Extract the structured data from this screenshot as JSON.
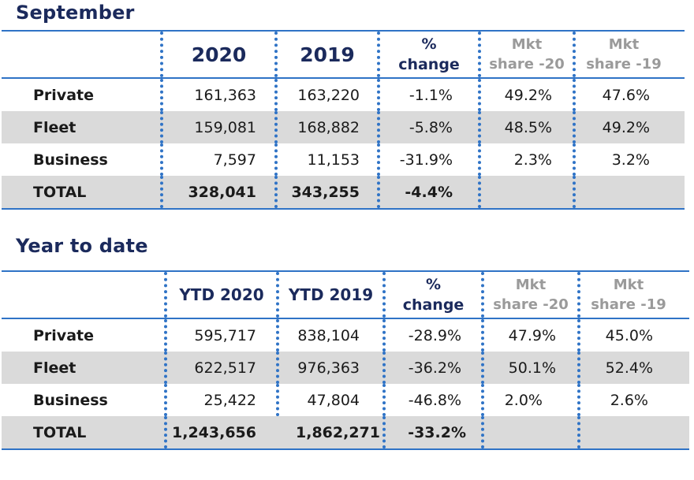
{
  "sections": [
    {
      "title": "September",
      "headers": {
        "col1": "2020",
        "col2": "2019",
        "pct": [
          "%",
          "change"
        ],
        "mkt20": [
          "Mkt",
          "share -20"
        ],
        "mkt19": [
          "Mkt",
          "share -19"
        ]
      },
      "rows": [
        {
          "label": "Private",
          "v1": "161,363",
          "v2": "163,220",
          "pct": "-1.1%",
          "m20": "49.2%",
          "m19": "47.6%"
        },
        {
          "label": "Fleet",
          "v1": "159,081",
          "v2": "168,882",
          "pct": "-5.8%",
          "m20": "48.5%",
          "m19": "49.2%"
        },
        {
          "label": "Business",
          "v1": "7,597",
          "v2": "11,153",
          "pct": "-31.9%",
          "m20": "2.3%",
          "m19": "3.2%"
        }
      ],
      "total": {
        "label": "TOTAL",
        "v1": "328,041",
        "v2": "343,255",
        "pct": "-4.4%"
      }
    },
    {
      "title": "Year to date",
      "headers": {
        "col1": "YTD 2020",
        "col2": "YTD 2019",
        "pct": [
          "%",
          "change"
        ],
        "mkt20": [
          "Mkt",
          "share -20"
        ],
        "mkt19": [
          "Mkt",
          "share -19"
        ]
      },
      "rows": [
        {
          "label": "Private",
          "v1": "595,717",
          "v2": "838,104",
          "pct": "-28.9%",
          "m20": "47.9%",
          "m19": "45.0%"
        },
        {
          "label": "Fleet",
          "v1": "622,517",
          "v2": "976,363",
          "pct": "-36.2%",
          "m20": "50.1%",
          "m19": "52.4%"
        },
        {
          "label": "Business",
          "v1": "25,422",
          "v2": "47,804",
          "pct": "-46.8%",
          "m20": "2.0%",
          "m19": "2.6%"
        }
      ],
      "total": {
        "label": "TOTAL",
        "v1": "1,243,656",
        "v2": "1,862,271",
        "pct": "-33.2%"
      }
    }
  ]
}
